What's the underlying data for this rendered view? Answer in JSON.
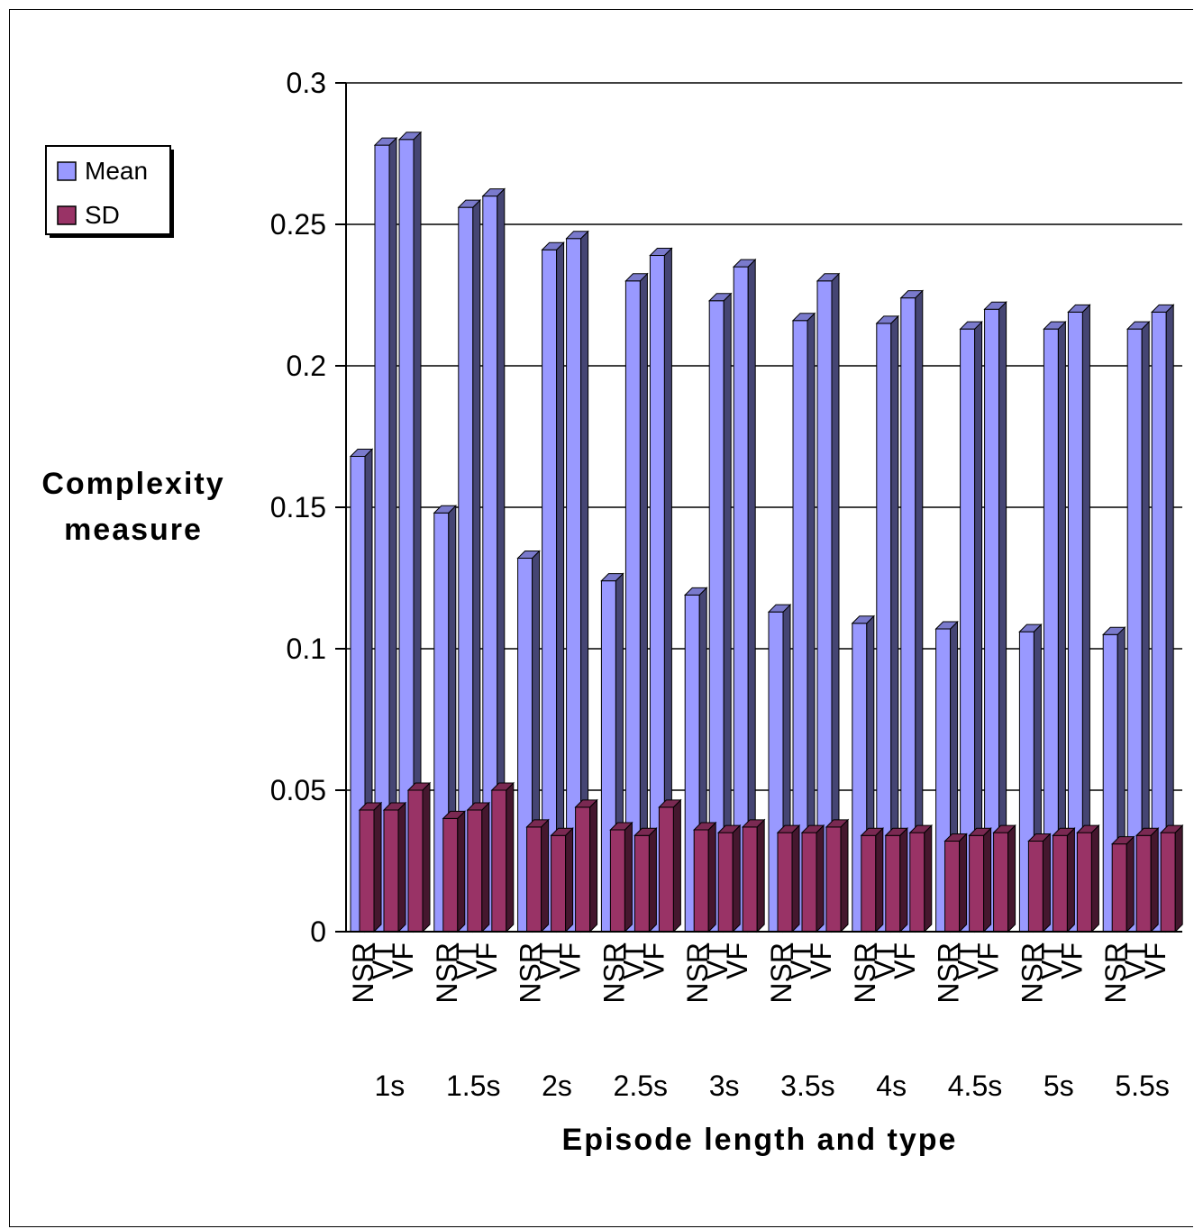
{
  "chart_data": {
    "type": "bar",
    "ylabel_lines": [
      "Complexity",
      "measure"
    ],
    "xlabel": "Episode length and type",
    "ylim": [
      0,
      0.3
    ],
    "yticks": [
      "0",
      "0.05",
      "0.1",
      "0.15",
      "0.2",
      "0.25",
      "0.3"
    ],
    "grid": true,
    "legend_position": "top-left",
    "groups": [
      "1s",
      "1.5s",
      "2s",
      "2.5s",
      "3s",
      "3.5s",
      "4s",
      "4.5s",
      "5s",
      "5.5s"
    ],
    "types": [
      "NSR",
      "VT",
      "VF"
    ],
    "series": [
      {
        "name": "Mean",
        "color": "#9999FF",
        "values": [
          [
            0.168,
            0.278,
            0.28
          ],
          [
            0.148,
            0.256,
            0.26
          ],
          [
            0.132,
            0.241,
            0.245
          ],
          [
            0.124,
            0.23,
            0.239
          ],
          [
            0.119,
            0.223,
            0.235
          ],
          [
            0.113,
            0.216,
            0.23
          ],
          [
            0.109,
            0.215,
            0.224
          ],
          [
            0.107,
            0.213,
            0.22
          ],
          [
            0.106,
            0.213,
            0.219
          ],
          [
            0.105,
            0.213,
            0.219
          ]
        ]
      },
      {
        "name": "SD",
        "color": "#993366",
        "values": [
          [
            0.043,
            0.043,
            0.05
          ],
          [
            0.04,
            0.043,
            0.05
          ],
          [
            0.037,
            0.034,
            0.044
          ],
          [
            0.036,
            0.034,
            0.044
          ],
          [
            0.036,
            0.035,
            0.037
          ],
          [
            0.035,
            0.035,
            0.037
          ],
          [
            0.034,
            0.034,
            0.035
          ],
          [
            0.032,
            0.034,
            0.035
          ],
          [
            0.032,
            0.034,
            0.035
          ],
          [
            0.031,
            0.034,
            0.035
          ]
        ]
      }
    ]
  }
}
